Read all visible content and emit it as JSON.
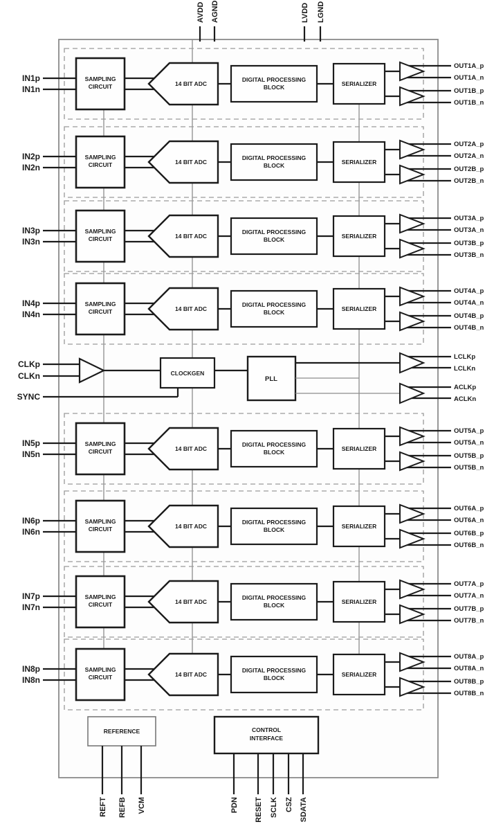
{
  "colors": {
    "ink": "#1b1b1b",
    "bus_gray": "#8c8c8c",
    "dash_gray": "#9a9a9a",
    "chip_border": "#8a8a8a",
    "background": "#ffffff"
  },
  "top_pins": [
    "AVDD",
    "AGND",
    "LVDD",
    "LGND"
  ],
  "channel_blocks": {
    "sampling_line1": "SAMPLING",
    "sampling_line2": "CIRCUIT",
    "adc": "14 BIT ADC",
    "dpb_line1": "DIGITAL PROCESSING",
    "dpb_line2": "BLOCK",
    "serializer": "SERIALIZER"
  },
  "channels": [
    {
      "in_p": "IN1p",
      "in_n": "IN1n",
      "out_a_p": "OUT1A_p",
      "out_a_n": "OUT1A_n",
      "out_b_p": "OUT1B_p",
      "out_b_n": "OUT1B_n"
    },
    {
      "in_p": "IN2p",
      "in_n": "IN2n",
      "out_a_p": "OUT2A_p",
      "out_a_n": "OUT2A_n",
      "out_b_p": "OUT2B_p",
      "out_b_n": "OUT2B_n"
    },
    {
      "in_p": "IN3p",
      "in_n": "IN3n",
      "out_a_p": "OUT3A_p",
      "out_a_n": "OUT3A_n",
      "out_b_p": "OUT3B_p",
      "out_b_n": "OUT3B_n"
    },
    {
      "in_p": "IN4p",
      "in_n": "IN4n",
      "out_a_p": "OUT4A_p",
      "out_a_n": "OUT4A_n",
      "out_b_p": "OUT4B_p",
      "out_b_n": "OUT4B_n"
    },
    {
      "in_p": "IN5p",
      "in_n": "IN5n",
      "out_a_p": "OUT5A_p",
      "out_a_n": "OUT5A_n",
      "out_b_p": "OUT5B_p",
      "out_b_n": "OUT5B_n"
    },
    {
      "in_p": "IN6p",
      "in_n": "IN6n",
      "out_a_p": "OUT6A_p",
      "out_a_n": "OUT6A_n",
      "out_b_p": "OUT6B_p",
      "out_b_n": "OUT6B_n"
    },
    {
      "in_p": "IN7p",
      "in_n": "IN7n",
      "out_a_p": "OUT7A_p",
      "out_a_n": "OUT7A_n",
      "out_b_p": "OUT7B_p",
      "out_b_n": "OUT7B_n"
    },
    {
      "in_p": "IN8p",
      "in_n": "IN8n",
      "out_a_p": "OUT8A_p",
      "out_a_n": "OUT8A_n",
      "out_b_p": "OUT8B_p",
      "out_b_n": "OUT8B_n"
    }
  ],
  "clock": {
    "clk_p": "CLKp",
    "clk_n": "CLKn",
    "sync": "SYNC",
    "clockgen": "CLOCKGEN",
    "pll": "PLL",
    "lclk_p": "LCLKp",
    "lclk_n": "LCLKn",
    "aclk_p": "ACLKp",
    "aclk_n": "ACLKn"
  },
  "bottom": {
    "reference": "REFERENCE",
    "control_line1": "CONTROL",
    "control_line2": "INTERFACE",
    "ref_pins": [
      "REFT",
      "REFB",
      "VCM"
    ],
    "ctrl_pins": [
      "PDN",
      "RESET",
      "SCLK",
      "CSZ",
      "SDATA"
    ]
  }
}
